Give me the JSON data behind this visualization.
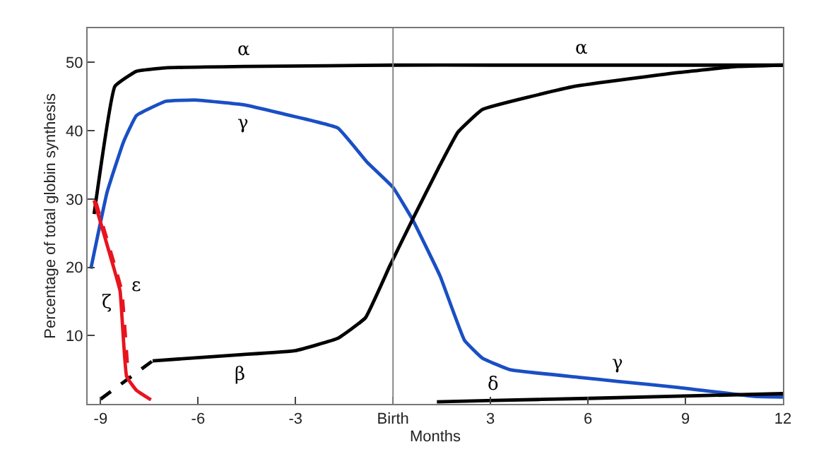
{
  "chart_data": {
    "type": "line",
    "xlabel": "Months",
    "ylabel": "Percentage of total globin synthesis",
    "xlim": [
      -9.4,
      12
    ],
    "ylim": [
      0,
      55
    ],
    "xticks": [
      -9,
      -6,
      -3,
      {
        "value": 0,
        "label": "Birth"
      },
      3,
      6,
      9,
      12
    ],
    "yticks": [
      10,
      20,
      30,
      40,
      50
    ],
    "legend": false,
    "marker": "none",
    "ref_lines": [
      {
        "axis": "x",
        "value": 0,
        "color": "#888888"
      }
    ],
    "series": [
      {
        "name": "α",
        "color": "#000000",
        "line_style": "solid",
        "x": [
          -9.2,
          -8.56,
          -7.9,
          -7.0,
          -4.6,
          -2,
          0,
          3,
          5.8,
          8,
          12
        ],
        "values": [
          27.8,
          46.5,
          48.7,
          49.2,
          49.4,
          49.5,
          49.6,
          49.6,
          49.6,
          49.6,
          49.6
        ]
      },
      {
        "name": "γ",
        "color": "#1a4fc4",
        "line_style": "solid",
        "x": [
          -9.3,
          -8.8,
          -8.3,
          -7.9,
          -7.0,
          -6.1,
          -4.6,
          -3.5,
          -1.7,
          -0.8,
          0,
          0.6,
          1.45,
          2.2,
          2.75,
          3.6,
          5.7,
          6.9,
          8.8,
          11.1,
          12
        ],
        "values": [
          19.8,
          31,
          38.3,
          42.2,
          44.3,
          44.5,
          43.8,
          42.6,
          40.4,
          35.4,
          31.7,
          27,
          18.7,
          9.3,
          6.7,
          5,
          3.9,
          3.3,
          2.4,
          1.1,
          1
        ]
      },
      {
        "color": "#000000",
        "line_style": "dashed",
        "x": [
          -9,
          -7.4
        ],
        "values": [
          0.7,
          6.3
        ]
      },
      {
        "name": "β",
        "color": "#000000",
        "line_style": "solid",
        "x": [
          -7.4,
          -4.7,
          -3,
          -1.7,
          -0.85,
          -0.1,
          0.6,
          1.45,
          2.0,
          2.75,
          5.6,
          8.75,
          10.6,
          12
        ],
        "values": [
          6.3,
          7.2,
          7.8,
          9.6,
          12.6,
          20.2,
          27,
          35,
          39.8,
          43.1,
          46.5,
          48.5,
          49.4,
          49.6
        ]
      },
      {
        "name": "δ",
        "color": "#000000",
        "line_style": "solid",
        "x": [
          1.35,
          3.1,
          6,
          12
        ],
        "values": [
          0.3,
          0.5,
          0.8,
          1.5
        ]
      },
      {
        "name": "ζ",
        "color": "#e8141e",
        "line_style": "solid",
        "x": [
          -9.2,
          -8.6,
          -8.4,
          -8.2,
          -7.9,
          -7.45
        ],
        "values": [
          29.8,
          20,
          16.5,
          4,
          2,
          0.6
        ]
      },
      {
        "name": "ε",
        "color": "#e8141e",
        "line_style": "dashed",
        "x": [
          -9.15,
          -8.55,
          -8.35,
          -8.15
        ],
        "values": [
          29.6,
          20,
          16.5,
          4
        ]
      }
    ]
  }
}
